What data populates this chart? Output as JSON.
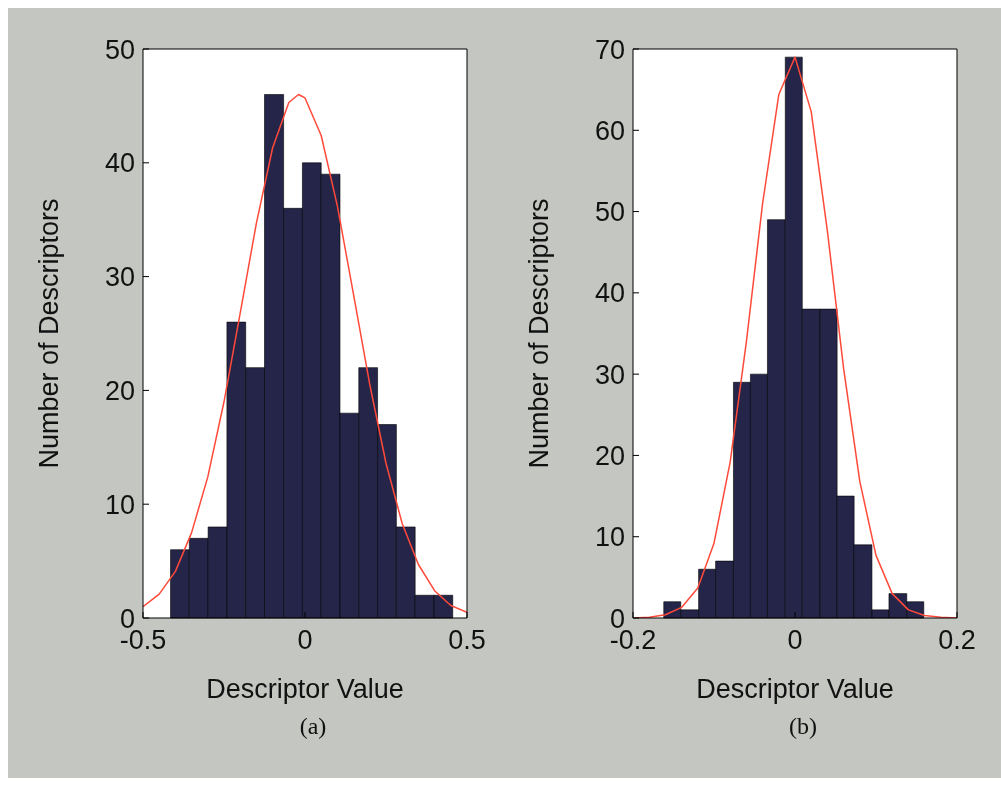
{
  "chart_data": [
    {
      "type": "histogram",
      "xlabel": "Descriptor Value",
      "ylabel": "Number of Descriptors",
      "annotations": [
        "(a)"
      ],
      "bins": [
        -0.415,
        -0.357,
        -0.299,
        -0.241,
        -0.183,
        -0.125,
        -0.066,
        -0.008,
        0.05,
        0.108,
        0.166,
        0.224,
        0.282,
        0.34,
        0.398,
        0.456
      ],
      "values": [
        6,
        7,
        8,
        26,
        22,
        46,
        36,
        40,
        39,
        18,
        22,
        17,
        8,
        2,
        2
      ],
      "color": "#25254a",
      "series": [
        {
          "type": "line",
          "color": "#ff4a3a",
          "x": [
            -0.5,
            -0.45,
            -0.4,
            -0.35,
            -0.3,
            -0.25,
            -0.2,
            -0.15,
            -0.1,
            -0.05,
            -0.02,
            0,
            0.05,
            0.1,
            0.15,
            0.2,
            0.25,
            0.3,
            0.35,
            0.4,
            0.45,
            0.5
          ],
          "values": [
            1,
            2.1,
            4.1,
            7.5,
            12.4,
            19,
            26.8,
            34.7,
            41.3,
            45.3,
            46,
            45.7,
            42.4,
            36.2,
            28.4,
            20.5,
            13.6,
            8.3,
            4.7,
            2.4,
            1.1,
            0.5
          ]
        }
      ],
      "xlim": [
        -0.5,
        0.5
      ],
      "xticks": [
        -0.5,
        0,
        0.5
      ],
      "ylim": [
        0,
        50
      ],
      "yticks": [
        0,
        10,
        20,
        30,
        40,
        50
      ]
    },
    {
      "type": "histogram",
      "xlabel": "Descriptor Value",
      "ylabel": "Number of Descriptors",
      "annotations": [
        "(b)"
      ],
      "bins": [
        -0.162,
        -0.141,
        -0.119,
        -0.098,
        -0.076,
        -0.055,
        -0.034,
        -0.012,
        0.009,
        0.031,
        0.052,
        0.073,
        0.095,
        0.116,
        0.138,
        0.159
      ],
      "values": [
        2,
        1,
        6,
        7,
        29,
        30,
        49,
        69,
        38,
        38,
        15,
        9,
        1,
        3,
        2
      ],
      "color": "#25254a",
      "series": [
        {
          "type": "line",
          "color": "#ff4a3a",
          "x": [
            -0.2,
            -0.18,
            -0.16,
            -0.14,
            -0.12,
            -0.1,
            -0.08,
            -0.06,
            -0.04,
            -0.02,
            0,
            0.02,
            0.04,
            0.06,
            0.08,
            0.1,
            0.12,
            0.14,
            0.16,
            0.18,
            0.2
          ],
          "values": [
            0,
            0.1,
            0.4,
            1.3,
            3.7,
            9.2,
            19.2,
            34,
            51,
            64.4,
            69,
            62.3,
            47.6,
            30.7,
            16.8,
            7.7,
            3,
            1,
            0.3,
            0.1,
            0
          ]
        }
      ],
      "xlim": [
        -0.2,
        0.2
      ],
      "xticks": [
        -0.2,
        0,
        0.2
      ],
      "ylim": [
        0,
        70
      ],
      "yticks": [
        0,
        10,
        20,
        30,
        40,
        50,
        60,
        70
      ]
    }
  ]
}
